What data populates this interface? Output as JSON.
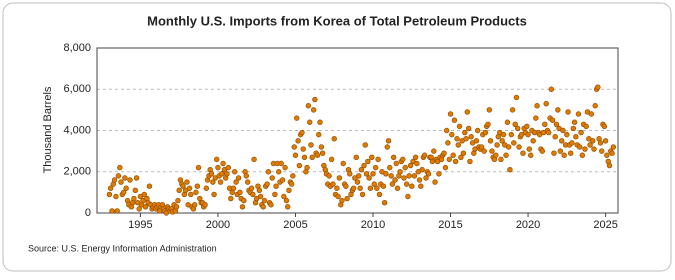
{
  "chart_data": {
    "type": "scatter",
    "title": "Monthly U.S. Imports from Korea of Total Petroleum Products",
    "y_label": "Thousand Barrels",
    "source": "Source: U.S. Energy Information Administration",
    "xlim": [
      1992.2,
      2025.8
    ],
    "xticks": [
      1995,
      2000,
      2005,
      2010,
      2015,
      2020,
      2025
    ],
    "ylim": [
      0,
      8000
    ],
    "yticks": [
      0,
      {
        "value": 2000,
        "label": "2,000"
      },
      {
        "value": 4000,
        "label": "4,000"
      },
      {
        "value": 6000,
        "label": "6,000"
      },
      {
        "value": 8000,
        "label": "8,000"
      }
    ],
    "grid": true,
    "color": "#e07b00",
    "x": [
      1993.0,
      1993.08,
      1993.17,
      1993.25,
      1993.33,
      1993.42,
      1993.5,
      1993.58,
      1993.67,
      1993.75,
      1993.83,
      1993.92,
      1994.0,
      1994.08,
      1994.17,
      1994.25,
      1994.33,
      1994.42,
      1994.5,
      1994.58,
      1994.67,
      1994.75,
      1994.83,
      1994.92,
      1995.0,
      1995.08,
      1995.17,
      1995.25,
      1995.33,
      1995.42,
      1995.5,
      1995.58,
      1995.67,
      1995.75,
      1995.83,
      1995.92,
      1996.0,
      1996.08,
      1996.17,
      1996.25,
      1996.33,
      1996.42,
      1996.5,
      1996.58,
      1996.67,
      1996.75,
      1996.83,
      1996.92,
      1997.0,
      1997.08,
      1997.17,
      1997.25,
      1997.33,
      1997.42,
      1997.5,
      1997.58,
      1997.67,
      1997.75,
      1997.83,
      1997.92,
      1998.0,
      1998.08,
      1998.17,
      1998.25,
      1998.33,
      1998.42,
      1998.5,
      1998.58,
      1998.67,
      1998.75,
      1998.83,
      1998.92,
      1999.0,
      1999.08,
      1999.17,
      1999.25,
      1999.33,
      1999.42,
      1999.5,
      1999.58,
      1999.67,
      1999.75,
      1999.83,
      1999.92,
      2000.0,
      2000.08,
      2000.17,
      2000.25,
      2000.33,
      2000.42,
      2000.5,
      2000.58,
      2000.67,
      2000.75,
      2000.83,
      2000.92,
      2001.0,
      2001.08,
      2001.17,
      2001.25,
      2001.33,
      2001.42,
      2001.5,
      2001.58,
      2001.67,
      2001.75,
      2001.83,
      2001.92,
      2002.0,
      2002.08,
      2002.17,
      2002.25,
      2002.33,
      2002.42,
      2002.5,
      2002.58,
      2002.67,
      2002.75,
      2002.83,
      2002.92,
      2003.0,
      2003.08,
      2003.17,
      2003.25,
      2003.33,
      2003.42,
      2003.5,
      2003.58,
      2003.67,
      2003.75,
      2003.83,
      2003.92,
      2004.0,
      2004.08,
      2004.17,
      2004.25,
      2004.33,
      2004.42,
      2004.5,
      2004.58,
      2004.67,
      2004.75,
      2004.83,
      2004.92,
      2005.0,
      2005.08,
      2005.17,
      2005.25,
      2005.33,
      2005.42,
      2005.5,
      2005.58,
      2005.67,
      2005.75,
      2005.83,
      2005.92,
      2006.0,
      2006.08,
      2006.17,
      2006.25,
      2006.33,
      2006.42,
      2006.5,
      2006.58,
      2006.67,
      2006.75,
      2006.83,
      2006.92,
      2007.0,
      2007.08,
      2007.17,
      2007.25,
      2007.33,
      2007.42,
      2007.5,
      2007.58,
      2007.67,
      2007.75,
      2007.83,
      2007.92,
      2008.0,
      2008.08,
      2008.17,
      2008.25,
      2008.33,
      2008.42,
      2008.5,
      2008.58,
      2008.67,
      2008.75,
      2008.83,
      2008.92,
      2009.0,
      2009.08,
      2009.17,
      2009.25,
      2009.33,
      2009.42,
      2009.5,
      2009.58,
      2009.67,
      2009.75,
      2009.83,
      2009.92,
      2010.0,
      2010.08,
      2010.17,
      2010.25,
      2010.33,
      2010.42,
      2010.5,
      2010.58,
      2010.67,
      2010.75,
      2010.83,
      2010.92,
      2011.0,
      2011.08,
      2011.17,
      2011.25,
      2011.33,
      2011.42,
      2011.5,
      2011.58,
      2011.67,
      2011.75,
      2011.83,
      2011.92,
      2012.0,
      2012.08,
      2012.17,
      2012.25,
      2012.33,
      2012.42,
      2012.5,
      2012.58,
      2012.67,
      2012.75,
      2012.83,
      2012.92,
      2013.0,
      2013.08,
      2013.17,
      2013.25,
      2013.33,
      2013.42,
      2013.5,
      2013.58,
      2013.67,
      2013.75,
      2013.83,
      2013.92,
      2014.0,
      2014.08,
      2014.17,
      2014.25,
      2014.33,
      2014.42,
      2014.5,
      2014.58,
      2014.67,
      2014.75,
      2014.83,
      2014.92,
      2015.0,
      2015.08,
      2015.17,
      2015.25,
      2015.33,
      2015.42,
      2015.5,
      2015.58,
      2015.67,
      2015.75,
      2015.83,
      2015.92,
      2016.0,
      2016.08,
      2016.17,
      2016.25,
      2016.33,
      2016.42,
      2016.5,
      2016.58,
      2016.67,
      2016.75,
      2016.83,
      2016.92,
      2017.0,
      2017.08,
      2017.17,
      2017.25,
      2017.33,
      2017.42,
      2017.5,
      2017.58,
      2017.67,
      2017.75,
      2017.83,
      2017.92,
      2018.0,
      2018.08,
      2018.17,
      2018.25,
      2018.33,
      2018.42,
      2018.5,
      2018.58,
      2018.67,
      2018.75,
      2018.83,
      2018.92,
      2019.0,
      2019.08,
      2019.17,
      2019.25,
      2019.33,
      2019.42,
      2019.5,
      2019.58,
      2019.67,
      2019.75,
      2019.83,
      2019.92,
      2020.0,
      2020.08,
      2020.17,
      2020.25,
      2020.33,
      2020.42,
      2020.5,
      2020.58,
      2020.67,
      2020.75,
      2020.83,
      2020.92,
      2021.0,
      2021.08,
      2021.17,
      2021.25,
      2021.33,
      2021.42,
      2021.5,
      2021.58,
      2021.67,
      2021.75,
      2021.83,
      2021.92,
      2022.0,
      2022.08,
      2022.17,
      2022.25,
      2022.33,
      2022.42,
      2022.5,
      2022.58,
      2022.67,
      2022.75,
      2022.83,
      2022.92,
      2023.0,
      2023.08,
      2023.17,
      2023.25,
      2023.33,
      2023.42,
      2023.5,
      2023.58,
      2023.67,
      2023.75,
      2023.83,
      2023.92,
      2024.0,
      2024.08,
      2024.17,
      2024.25,
      2024.33,
      2024.42,
      2024.5,
      2024.58,
      2024.67,
      2024.75,
      2024.83,
      2024.92,
      2025.0,
      2025.08,
      2025.17,
      2025.25,
      2025.33,
      2025.42,
      2025.5
    ],
    "values": [
      900,
      1200,
      100,
      1400,
      1600,
      800,
      100,
      1800,
      2200,
      1500,
      900,
      1000,
      1700,
      1200,
      600,
      400,
      1600,
      300,
      500,
      700,
      1100,
      1700,
      500,
      200,
      800,
      400,
      600,
      900,
      300,
      700,
      500,
      1300,
      400,
      200,
      300,
      400,
      200,
      300,
      400,
      100,
      300,
      400,
      200,
      100,
      0,
      300,
      200,
      100,
      200,
      50,
      400,
      100,
      300,
      600,
      1100,
      1600,
      1400,
      1300,
      900,
      1100,
      1500,
      400,
      1200,
      900,
      300,
      200,
      400,
      1000,
      1300,
      2200,
      700,
      500,
      500,
      300,
      400,
      1200,
      1600,
      1800,
      2100,
      1900,
      1500,
      900,
      1700,
      2600,
      2200,
      1800,
      1500,
      1900,
      2400,
      2100,
      1700,
      1900,
      2200,
      1200,
      700,
      1000,
      1200,
      2000,
      1500,
      900,
      1700,
      1000,
      700,
      300,
      600,
      2000,
      1800,
      1500,
      1100,
      1000,
      1200,
      900,
      2600,
      500,
      700,
      1300,
      1100,
      800,
      400,
      300,
      600,
      1300,
      1400,
      2000,
      500,
      400,
      1700,
      2400,
      900,
      1300,
      2400,
      2000,
      1500,
      2400,
      1600,
      800,
      2200,
      600,
      300,
      1100,
      1500,
      1400,
      1800,
      3200,
      2800,
      4600,
      3500,
      2300,
      3800,
      3900,
      3100,
      2700,
      2000,
      2200,
      5200,
      4400,
      3300,
      2700,
      5000,
      5500,
      2900,
      2800,
      3800,
      4400,
      3200,
      2900,
      2300,
      2100,
      1900,
      1400,
      1800,
      1300,
      2600,
      1400,
      3600,
      900,
      1200,
      800,
      1700,
      400,
      600,
      2400,
      1400,
      1300,
      700,
      2100,
      1900,
      900,
      1100,
      1200,
      1700,
      2700,
      1500,
      1800,
      1200,
      2100,
      900,
      2300,
      3300,
      1900,
      2500,
      1700,
      1200,
      2700,
      1900,
      1400,
      2200,
      1200,
      2600,
      900,
      1400,
      2000,
      1300,
      500,
      1900,
      3200,
      3500,
      2200,
      1800,
      1400,
      2700,
      1600,
      2400,
      1200,
      1800,
      2000,
      2500,
      2600,
      1700,
      2200,
      1400,
      800,
      1800,
      2300,
      1300,
      2500,
      1800,
      2700,
      2400,
      2000,
      1600,
      1300,
      2100,
      2700,
      2800,
      1700,
      2000,
      1900,
      2700,
      2700,
      2500,
      3000,
      1500,
      2600,
      2500,
      1900,
      2700,
      2600,
      2800,
      2900,
      2200,
      4000,
      3400,
      2600,
      4800,
      3800,
      2800,
      4500,
      2500,
      3600,
      3300,
      4200,
      2700,
      3500,
      2900,
      3900,
      3600,
      4900,
      4100,
      2500,
      3700,
      3400,
      2900,
      3100,
      3500,
      4000,
      3200,
      3100,
      3200,
      3800,
      3000,
      3900,
      4200,
      4300,
      5000,
      3500,
      3000,
      2700,
      2600,
      2800,
      3300,
      3700,
      3900,
      2600,
      3500,
      3800,
      3300,
      2800,
      4400,
      3200,
      2100,
      3800,
      5000,
      3400,
      4300,
      5600,
      4100,
      3200,
      3700,
      3800,
      2900,
      4100,
      3900,
      4200,
      3800,
      3100,
      2800,
      4000,
      3500,
      3900,
      4600,
      5200,
      3900,
      3800,
      3100,
      3000,
      3900,
      4300,
      5300,
      4000,
      3900,
      4600,
      6000,
      4500,
      2900,
      3700,
      4300,
      5000,
      4100,
      3000,
      3500,
      4000,
      2800,
      3300,
      3800,
      4900,
      3300,
      2900,
      3400,
      4100,
      4400,
      3700,
      3300,
      4800,
      3200,
      3900,
      2800,
      4300,
      3100,
      4200,
      4900,
      3600,
      3300,
      4800,
      3500,
      3100,
      5200,
      6000,
      6100,
      3600,
      3400,
      3000,
      4300,
      4200,
      3500,
      2800,
      2500,
      2300,
      3000,
      2900,
      3200
    ]
  }
}
